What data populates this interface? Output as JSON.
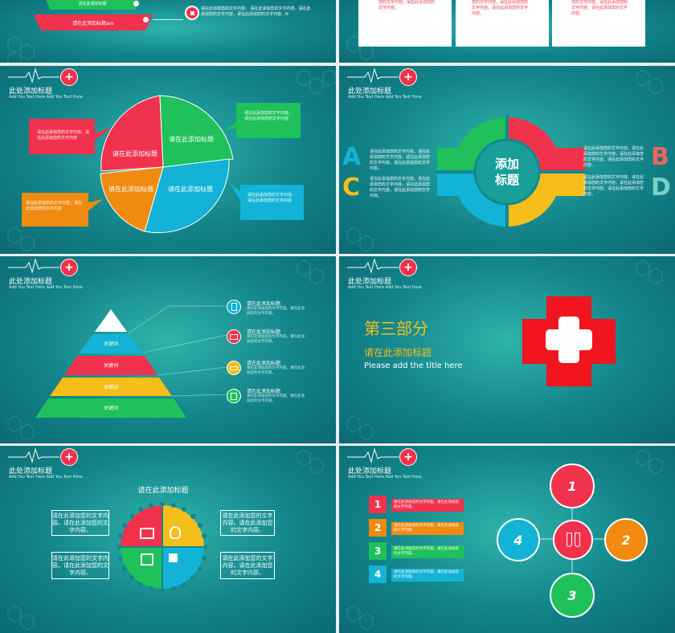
{
  "colors": {
    "red": "#f0324c",
    "green": "#1ec15a",
    "blue": "#12b3d6",
    "orange": "#f08a10",
    "yellow": "#f6be1a",
    "teal_bg": "#15888d"
  },
  "header": {
    "title": "此处添加标题",
    "subtitle": "Add You Text Here Add You Text Here"
  },
  "s1": {
    "funnel_top_label": "请在此添加标题",
    "funnel_bottom_label": "请在此添加标题are",
    "desc": "请在此添加您的文字内容。 请在此添加您的文字内容。请在此添加您的文字内容。请在此添加您的文字内容。N"
  },
  "s2": {
    "cards": [
      "您的文字内容。请在此添加您的文字内容。",
      "您的文字内容。请在此添加您的文字内容。请在此添加您的文字内容。",
      "您的文字内容。请在此添加您的文字内容。请在此添加您的文字内容。"
    ]
  },
  "s3": {
    "slices": [
      "请在此添加标题",
      "请在此添加标题",
      "请在此添加标题",
      "请在此添加标题"
    ],
    "callouts": [
      "请在此添加您的文字内容。请在此添加您的文字内容",
      "请在此添加您的文字内容。请在此添加您的文字内容",
      "请在此添加您的文字内容。请在此添加您的文字内容",
      "请在此添加您的文字内容。请在此添加您的文字内容"
    ]
  },
  "s4": {
    "center_line1": "添加",
    "center_line2": "标题",
    "letters": [
      "A",
      "B",
      "C",
      "D"
    ],
    "texts": [
      "请在此添加您的文字内容。请在此添加您的文字内容。请在此添加您的文字内容。请在此添加您的文字内容。",
      "请在此添加您的文字内容。请在此添加您的文字内容。请在此添加您的文字内容。请在此添加您的文字内容。",
      "请在此添加您的文字内容。请在此添加您的文字内容。请在此添加您的文字内容。请在此添加您的文字内容。",
      "请在此添加您的文字内容。请在此添加您的文字内容。请在此添加您的文字内容。请在此添加您的文字内容。"
    ]
  },
  "s5": {
    "tiers": [
      "关键词",
      "关键词",
      "关键词",
      "关键词"
    ],
    "items": [
      {
        "title": "请在此添加标题",
        "desc": "请在此添加您的文字内容。请在此添加您的文字内容。",
        "icon": "phone-icon"
      },
      {
        "title": "请在此添加标题",
        "desc": "请在此添加您的文字内容。请在此添加您的文字内容。",
        "icon": "monitor-icon"
      },
      {
        "title": "请在此添加标题",
        "desc": "请在此添加您的文字内容。请在此添加您的文字内容。",
        "icon": "keyboard-icon"
      },
      {
        "title": "请在此添加标题",
        "desc": "请在此添加您的文字内容。请在此添加您的文字内容。",
        "icon": "book-icon"
      }
    ]
  },
  "s6": {
    "part": "第三部分",
    "title": "请在此添加标题",
    "subtitle": "Please add the title here"
  },
  "s7": {
    "title": "请在此添加标题",
    "boxes": [
      "请在此添加您的文字内容。请在此添加您的文字内容。",
      "请在此添加您的文字内容。请在此添加您的文字内容。",
      "请在此添加您的文字内容。请在此添加您的文字内容。",
      "请在此添加您的文字内容。请在此添加您的文字内容。"
    ]
  },
  "s8": {
    "numbers": [
      "1",
      "2",
      "3",
      "4"
    ],
    "items": [
      "请在此添加您的文字内容。请在此添加您的文字内容。",
      "请在此添加您的文字内容。请在此添加您的文字内容。",
      "请在此添加您的文字内容。请在此添加您的文字内容。",
      "请在此添加您的文字内容。请在此添加您的文字内容。"
    ],
    "circles": [
      "1",
      "2",
      "3",
      "4"
    ]
  }
}
